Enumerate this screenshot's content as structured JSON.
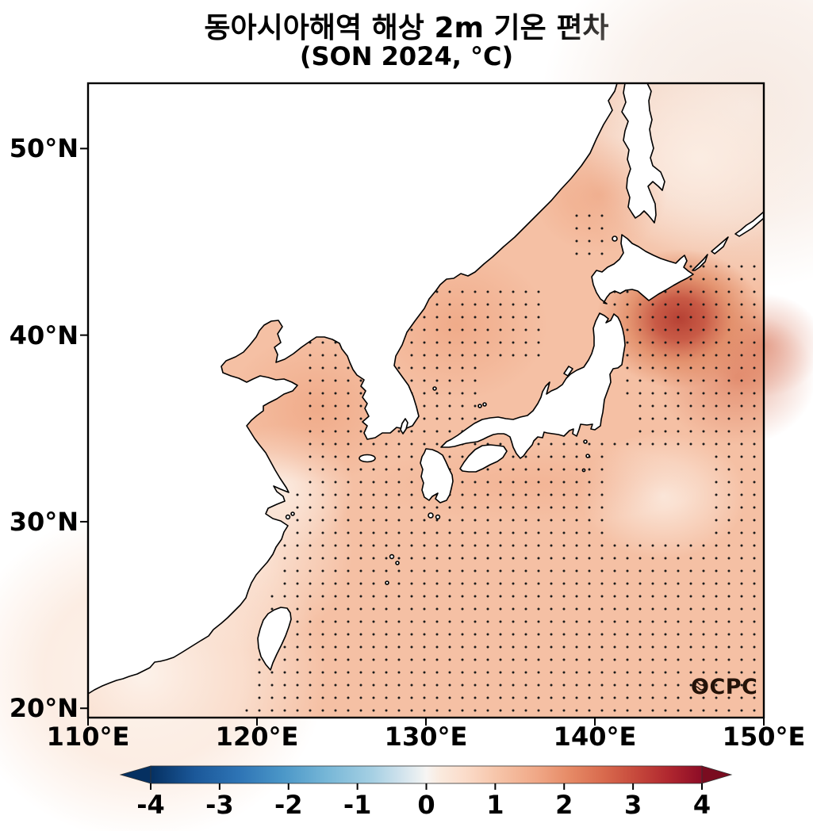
{
  "figure": {
    "title": "동아시아해역 해상 2m 기온 편차",
    "subtitle": "(SON 2024, °C)",
    "logo": "OCPC"
  },
  "chart_data": {
    "type": "map_contour",
    "title": "동아시아해역 해상 2m 기온 편차",
    "subtitle": "(SON 2024, °C)",
    "region": "East Asian marginal seas (110°E–150°E, 20°N–53.5°N)",
    "variable": "2 m air temperature anomaly over ocean",
    "season": "SON 2024",
    "units": "°C",
    "lon_range": [
      110,
      150
    ],
    "lat_range": [
      19.5,
      53.5
    ],
    "xticks": [
      {
        "value": 110,
        "label": "110°E"
      },
      {
        "value": 120,
        "label": "120°E"
      },
      {
        "value": 130,
        "label": "130°E"
      },
      {
        "value": 140,
        "label": "140°E"
      },
      {
        "value": 150,
        "label": "150°E"
      }
    ],
    "yticks": [
      {
        "value": 20,
        "label": "20°N"
      },
      {
        "value": 30,
        "label": "30°N"
      },
      {
        "value": 40,
        "label": "40°N"
      },
      {
        "value": 50,
        "label": "50°N"
      }
    ],
    "colorbar": {
      "orientation": "horizontal",
      "min": -4,
      "max": 4,
      "extend": "both",
      "cmap": "RdBu_r (blue = cold anomaly, red = warm anomaly)",
      "tick_labels": [
        "-4",
        "-3",
        "-2",
        "-1",
        "0",
        "1",
        "2",
        "3",
        "4"
      ]
    },
    "anomaly_features": [
      {
        "feature": "basin-wide background warm anomaly",
        "value_c": 1.0
      },
      {
        "feature": "maximum east of Tsugaru Strait (~145°E, 41°N)",
        "value_c": 2.8
      },
      {
        "feature": "secondary warm patch near 148°E, 37.5°N",
        "value_c": 1.8
      },
      {
        "feature": "Yellow Sea / northwest East Sea patches",
        "value_c": 1.4
      },
      {
        "feature": "SE China coastal waters (weakest anomaly)",
        "value_c": 0.2
      },
      {
        "feature": "NE corner east of Sakhalin",
        "value_c": 0.4
      },
      {
        "feature": "pale patch southeast of Honshu (~142°E, 31.5°N)",
        "value_c": 0.7
      }
    ],
    "stippling_note": "small black dots over the ocean mark stippled (significant) grid points",
    "land_color": "#ffffff",
    "accent_colors": {
      "hotspot": "#b94434",
      "ocean_base": "#f5c0a4"
    },
    "stipple": {
      "cell": 16,
      "regions": [
        [
          278,
          318,
          372,
          318,
          372,
          458,
          278,
          458
        ],
        [
          277,
          455,
          852,
          455,
          852,
          800,
          195,
          800
        ],
        [
          655,
          228,
          852,
          228,
          852,
          455,
          700,
          455,
          655,
          330
        ],
        [
          395,
          250,
          570,
          250,
          570,
          352,
          395,
          352
        ],
        [
          615,
          165,
          655,
          165,
          655,
          228,
          615,
          228
        ],
        [
          375,
          350,
          500,
          350,
          500,
          458,
          375,
          458
        ]
      ],
      "holes": [
        [
          660,
          468,
          790,
          468,
          790,
          578,
          660,
          578
        ]
      ]
    }
  }
}
